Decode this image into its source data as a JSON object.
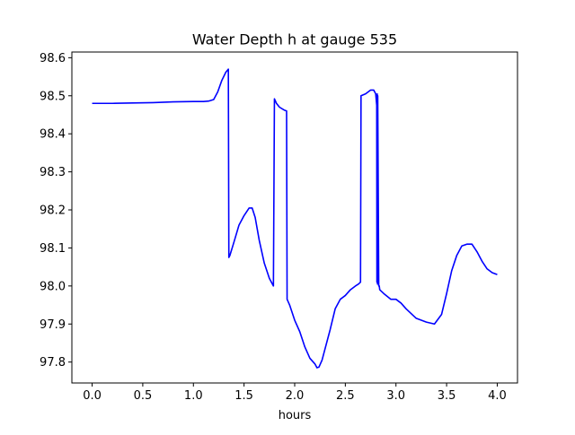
{
  "chart_data": {
    "type": "line",
    "title": "Water Depth h at gauge 535",
    "xlabel": "hours",
    "ylabel": "",
    "xlim": [
      -0.2,
      4.2
    ],
    "ylim": [
      97.745,
      98.615
    ],
    "xticks": [
      0.0,
      0.5,
      1.0,
      1.5,
      2.0,
      2.5,
      3.0,
      3.5,
      4.0
    ],
    "xtick_labels": [
      "0.0",
      "0.5",
      "1.0",
      "1.5",
      "2.0",
      "2.5",
      "3.0",
      "3.5",
      "4.0"
    ],
    "yticks": [
      97.8,
      97.9,
      98.0,
      98.1,
      98.2,
      98.3,
      98.4,
      98.5,
      98.6
    ],
    "ytick_labels": [
      "97.8",
      "97.9",
      "98.0",
      "98.1",
      "98.2",
      "98.3",
      "98.4",
      "98.5",
      "98.6"
    ],
    "grid": false,
    "series": [
      {
        "color": "#0000ff",
        "x": [
          0.0,
          0.2,
          0.4,
          0.6,
          0.8,
          1.0,
          1.1,
          1.15,
          1.2,
          1.24,
          1.28,
          1.32,
          1.345,
          1.35,
          1.36,
          1.4,
          1.45,
          1.5,
          1.55,
          1.58,
          1.61,
          1.65,
          1.7,
          1.75,
          1.79,
          1.8,
          1.82,
          1.85,
          1.9,
          1.92,
          1.925,
          1.95,
          2.0,
          2.05,
          2.1,
          2.15,
          2.2,
          2.22,
          2.24,
          2.27,
          2.3,
          2.35,
          2.4,
          2.45,
          2.5,
          2.55,
          2.6,
          2.63,
          2.65,
          2.655,
          2.7,
          2.75,
          2.78,
          2.8,
          2.81,
          2.812,
          2.815,
          2.818,
          2.82,
          2.83,
          2.835,
          2.84,
          2.88,
          2.95,
          3.0,
          3.05,
          3.1,
          3.2,
          3.3,
          3.38,
          3.45,
          3.5,
          3.55,
          3.6,
          3.65,
          3.7,
          3.75,
          3.8,
          3.85,
          3.9,
          3.95,
          4.0
        ],
        "y": [
          98.48,
          98.48,
          98.481,
          98.482,
          98.484,
          98.485,
          98.485,
          98.486,
          98.49,
          98.51,
          98.54,
          98.562,
          98.57,
          98.075,
          98.08,
          98.115,
          98.16,
          98.185,
          98.205,
          98.205,
          98.18,
          98.12,
          98.06,
          98.02,
          98.0,
          98.492,
          98.48,
          98.47,
          98.462,
          98.46,
          97.965,
          97.95,
          97.91,
          97.88,
          97.84,
          97.81,
          97.795,
          97.785,
          97.787,
          97.805,
          97.835,
          97.885,
          97.94,
          97.965,
          97.975,
          97.99,
          98.0,
          98.005,
          98.01,
          98.5,
          98.505,
          98.515,
          98.515,
          98.505,
          98.475,
          98.01,
          98.505,
          98.005,
          98.5,
          98.0,
          98.0,
          97.99,
          97.98,
          97.965,
          97.965,
          97.955,
          97.94,
          97.915,
          97.905,
          97.9,
          97.925,
          97.98,
          98.04,
          98.08,
          98.105,
          98.11,
          98.11,
          98.09,
          98.065,
          98.045,
          98.035,
          98.03
        ]
      }
    ]
  }
}
